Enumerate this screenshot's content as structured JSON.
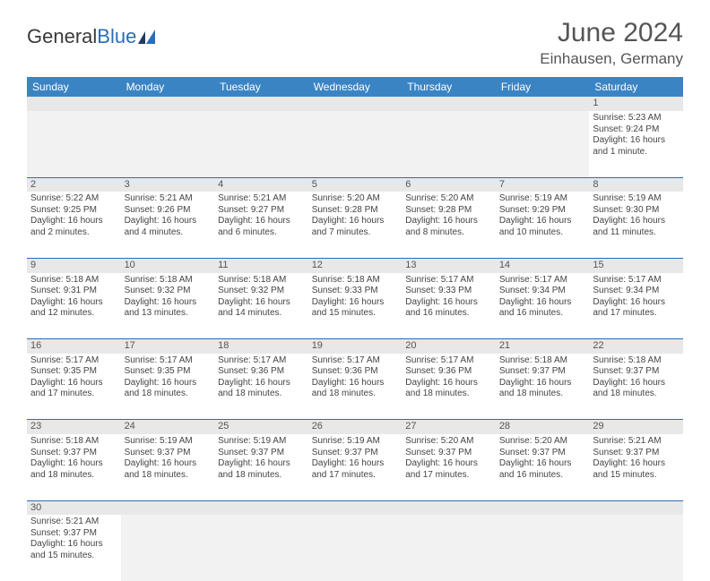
{
  "brand": {
    "part1": "General",
    "part2": "Blue"
  },
  "title": "June 2024",
  "location": "Einhausen, Germany",
  "colors": {
    "header_bg": "#3b84c4",
    "header_text": "#ffffff",
    "daynum_bg": "#e8e8e8",
    "border": "#2a6db8",
    "text": "#444444"
  },
  "typography": {
    "title_fontsize": 30,
    "location_fontsize": 17,
    "weekday_fontsize": 12,
    "cell_fontsize": 10
  },
  "layout": {
    "cols": 7,
    "rows": 6
  },
  "weekdays": [
    "Sunday",
    "Monday",
    "Tuesday",
    "Wednesday",
    "Thursday",
    "Friday",
    "Saturday"
  ],
  "days": [
    {
      "n": 1,
      "sr": "5:23 AM",
      "ss": "9:24 PM",
      "dl": "16 hours and 1 minute."
    },
    {
      "n": 2,
      "sr": "5:22 AM",
      "ss": "9:25 PM",
      "dl": "16 hours and 2 minutes."
    },
    {
      "n": 3,
      "sr": "5:21 AM",
      "ss": "9:26 PM",
      "dl": "16 hours and 4 minutes."
    },
    {
      "n": 4,
      "sr": "5:21 AM",
      "ss": "9:27 PM",
      "dl": "16 hours and 6 minutes."
    },
    {
      "n": 5,
      "sr": "5:20 AM",
      "ss": "9:28 PM",
      "dl": "16 hours and 7 minutes."
    },
    {
      "n": 6,
      "sr": "5:20 AM",
      "ss": "9:28 PM",
      "dl": "16 hours and 8 minutes."
    },
    {
      "n": 7,
      "sr": "5:19 AM",
      "ss": "9:29 PM",
      "dl": "16 hours and 10 minutes."
    },
    {
      "n": 8,
      "sr": "5:19 AM",
      "ss": "9:30 PM",
      "dl": "16 hours and 11 minutes."
    },
    {
      "n": 9,
      "sr": "5:18 AM",
      "ss": "9:31 PM",
      "dl": "16 hours and 12 minutes."
    },
    {
      "n": 10,
      "sr": "5:18 AM",
      "ss": "9:32 PM",
      "dl": "16 hours and 13 minutes."
    },
    {
      "n": 11,
      "sr": "5:18 AM",
      "ss": "9:32 PM",
      "dl": "16 hours and 14 minutes."
    },
    {
      "n": 12,
      "sr": "5:18 AM",
      "ss": "9:33 PM",
      "dl": "16 hours and 15 minutes."
    },
    {
      "n": 13,
      "sr": "5:17 AM",
      "ss": "9:33 PM",
      "dl": "16 hours and 16 minutes."
    },
    {
      "n": 14,
      "sr": "5:17 AM",
      "ss": "9:34 PM",
      "dl": "16 hours and 16 minutes."
    },
    {
      "n": 15,
      "sr": "5:17 AM",
      "ss": "9:34 PM",
      "dl": "16 hours and 17 minutes."
    },
    {
      "n": 16,
      "sr": "5:17 AM",
      "ss": "9:35 PM",
      "dl": "16 hours and 17 minutes."
    },
    {
      "n": 17,
      "sr": "5:17 AM",
      "ss": "9:35 PM",
      "dl": "16 hours and 18 minutes."
    },
    {
      "n": 18,
      "sr": "5:17 AM",
      "ss": "9:36 PM",
      "dl": "16 hours and 18 minutes."
    },
    {
      "n": 19,
      "sr": "5:17 AM",
      "ss": "9:36 PM",
      "dl": "16 hours and 18 minutes."
    },
    {
      "n": 20,
      "sr": "5:17 AM",
      "ss": "9:36 PM",
      "dl": "16 hours and 18 minutes."
    },
    {
      "n": 21,
      "sr": "5:18 AM",
      "ss": "9:37 PM",
      "dl": "16 hours and 18 minutes."
    },
    {
      "n": 22,
      "sr": "5:18 AM",
      "ss": "9:37 PM",
      "dl": "16 hours and 18 minutes."
    },
    {
      "n": 23,
      "sr": "5:18 AM",
      "ss": "9:37 PM",
      "dl": "16 hours and 18 minutes."
    },
    {
      "n": 24,
      "sr": "5:19 AM",
      "ss": "9:37 PM",
      "dl": "16 hours and 18 minutes."
    },
    {
      "n": 25,
      "sr": "5:19 AM",
      "ss": "9:37 PM",
      "dl": "16 hours and 18 minutes."
    },
    {
      "n": 26,
      "sr": "5:19 AM",
      "ss": "9:37 PM",
      "dl": "16 hours and 17 minutes."
    },
    {
      "n": 27,
      "sr": "5:20 AM",
      "ss": "9:37 PM",
      "dl": "16 hours and 17 minutes."
    },
    {
      "n": 28,
      "sr": "5:20 AM",
      "ss": "9:37 PM",
      "dl": "16 hours and 16 minutes."
    },
    {
      "n": 29,
      "sr": "5:21 AM",
      "ss": "9:37 PM",
      "dl": "16 hours and 15 minutes."
    },
    {
      "n": 30,
      "sr": "5:21 AM",
      "ss": "9:37 PM",
      "dl": "16 hours and 15 minutes."
    }
  ],
  "labels": {
    "sunrise": "Sunrise:",
    "sunset": "Sunset:",
    "daylight": "Daylight:"
  },
  "first_weekday_index": 6
}
